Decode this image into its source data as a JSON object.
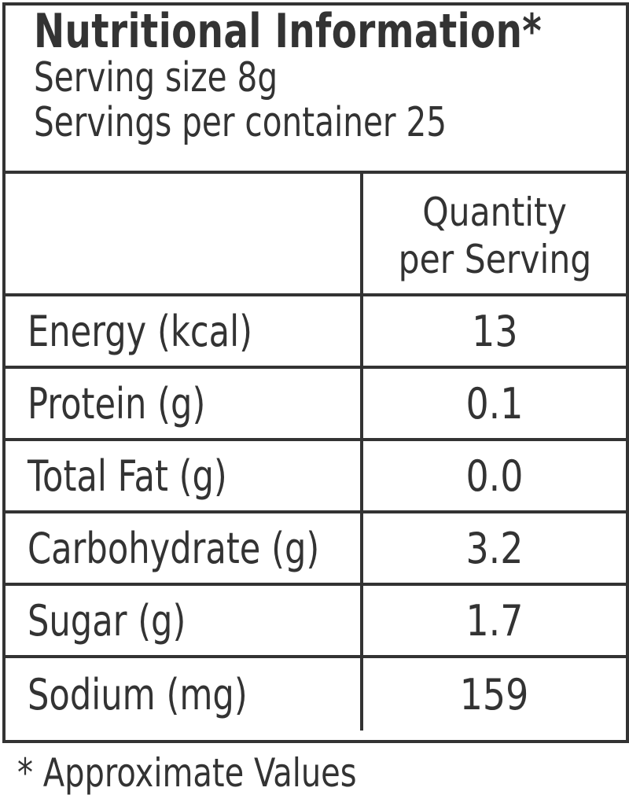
{
  "header": {
    "title": "Nutritional Information*",
    "serving_size": "Serving size 8g",
    "servings_per_container": "Servings per container 25"
  },
  "table": {
    "column_header_line1": "Quantity",
    "column_header_line2": "per Serving",
    "rows": [
      {
        "label": "Energy (kcal)",
        "value": "13"
      },
      {
        "label": "Protein (g)",
        "value": "0.1"
      },
      {
        "label": "Total Fat (g)",
        "value": "0.0"
      },
      {
        "label": "Carbohydrate (g)",
        "value": "3.2"
      },
      {
        "label": "Sugar (g)",
        "value": "1.7"
      },
      {
        "label": "Sodium (mg)",
        "value": "159"
      }
    ]
  },
  "footnote": "* Approximate Values",
  "colors": {
    "ink": "#333333",
    "background": "#ffffff"
  }
}
